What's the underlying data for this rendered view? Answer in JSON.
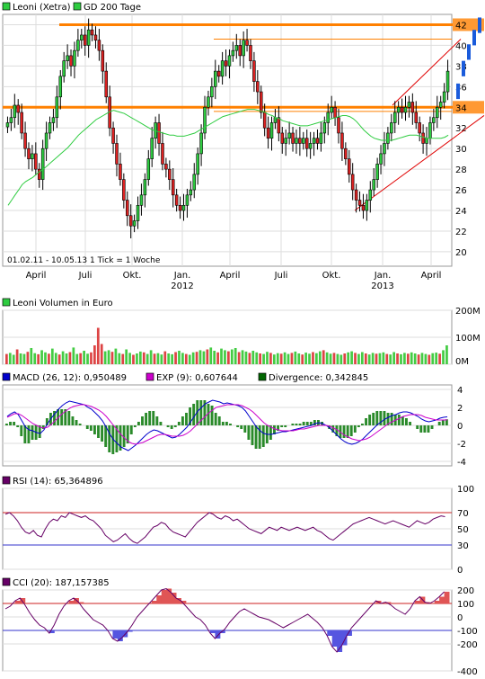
{
  "chart_data": [
    {
      "type": "candlestick",
      "legend": [
        {
          "label": "Leoni (Xetra)",
          "color": "#2ecc40"
        },
        {
          "label": "GD 200 Tage",
          "color": "#2ecc40"
        }
      ],
      "date_range_label": "01.02.11 - 10.05.13",
      "tick_label": "1 Tick = 1 Woche",
      "x_ticks": [
        "April",
        "Juli",
        "Okt.",
        "Jan.",
        "April",
        "Juli",
        "Okt.",
        "Jan.",
        "April"
      ],
      "year_labels": [
        "2012",
        "2013"
      ],
      "y_ticks": [
        20,
        22,
        24,
        26,
        28,
        30,
        32,
        34,
        36,
        38,
        40,
        42
      ],
      "ylim": [
        18.6,
        43.0
      ],
      "highlighted_levels": [
        42,
        34
      ],
      "close": [
        32.5,
        33.0,
        34.2,
        33.5,
        31.5,
        30.0,
        29.0,
        29.5,
        28.0,
        27.0,
        30.0,
        31.5,
        32.5,
        33.0,
        35.0,
        37.0,
        38.5,
        39.0,
        38.0,
        39.5,
        40.5,
        41.0,
        40.0,
        41.5,
        41.0,
        40.5,
        39.5,
        37.5,
        35.0,
        32.0,
        30.5,
        28.5,
        27.0,
        25.0,
        23.5,
        22.5,
        23.0,
        24.5,
        25.5,
        27.0,
        29.0,
        31.0,
        32.5,
        30.5,
        28.5,
        28.0,
        27.0,
        25.5,
        24.5,
        24.0,
        24.5,
        25.5,
        26.0,
        27.5,
        29.5,
        31.5,
        34.0,
        35.0,
        36.0,
        37.5,
        37.0,
        38.5,
        38.0,
        39.0,
        39.5,
        40.0,
        39.0,
        40.5,
        40.0,
        38.5,
        36.5,
        35.5,
        33.5,
        32.0,
        31.0,
        32.5,
        33.0,
        31.5,
        30.5,
        31.0,
        31.5,
        30.5,
        31.0,
        30.5,
        31.0,
        30.0,
        30.5,
        31.0,
        30.5,
        31.5,
        32.5,
        33.5,
        34.0,
        33.0,
        31.5,
        30.0,
        29.0,
        27.5,
        26.0,
        25.0,
        24.5,
        24.0,
        25.0,
        26.0,
        27.0,
        28.5,
        29.5,
        30.5,
        31.5,
        32.5,
        33.5,
        34.0,
        33.5,
        34.0,
        34.5,
        33.5,
        32.5,
        31.5,
        30.5,
        31.0,
        32.5,
        33.0,
        34.0,
        34.5,
        35.5,
        37.5
      ],
      "ma200": [
        24.5,
        25.0,
        25.5,
        26.0,
        26.5,
        26.8,
        27.0,
        27.2,
        27.5,
        27.8,
        28.0,
        28.3,
        28.6,
        28.9,
        29.2,
        29.5,
        29.8,
        30.1,
        30.5,
        30.9,
        31.3,
        31.6,
        31.9,
        32.2,
        32.5,
        32.8,
        33.0,
        33.2,
        33.4,
        33.6,
        33.7,
        33.6,
        33.5,
        33.4,
        33.2,
        33.0,
        32.8,
        32.6,
        32.4,
        32.2,
        32.0,
        31.8,
        31.7,
        31.6,
        31.5,
        31.4,
        31.3,
        31.3,
        31.2,
        31.2,
        31.2,
        31.3,
        31.4,
        31.5,
        31.7,
        31.9,
        32.1,
        32.3,
        32.5,
        32.7,
        32.9,
        33.1,
        33.2,
        33.3,
        33.4,
        33.5,
        33.6,
        33.7,
        33.8,
        33.8,
        33.8,
        33.7,
        33.6,
        33.5,
        33.3,
        33.2,
        33.0,
        32.9,
        32.7,
        32.6,
        32.5,
        32.4,
        32.3,
        32.2,
        32.2,
        32.2,
        32.3,
        32.4,
        32.5,
        32.6,
        32.7,
        32.8,
        32.9,
        33.0,
        33.1,
        33.2,
        33.2,
        33.1,
        32.9,
        32.6,
        32.2,
        31.8,
        31.5,
        31.2,
        31.0,
        30.9,
        30.8,
        30.8,
        30.8,
        30.8,
        30.9,
        31.0,
        31.1,
        31.2,
        31.3,
        31.3,
        31.3,
        31.2,
        31.1,
        31.0,
        31.0,
        31.0,
        31.0,
        31.0,
        31.1,
        31.3
      ]
    },
    {
      "type": "bar",
      "legend": [
        {
          "label": "Leoni Volumen in Euro",
          "color": "#2ecc40"
        }
      ],
      "y_ticks": [
        "0M",
        "100M",
        "200M"
      ],
      "ylim": [
        0,
        200
      ],
      "values": [
        38,
        42,
        35,
        55,
        40,
        38,
        46,
        60,
        41,
        37,
        52,
        44,
        39,
        58,
        42,
        36,
        48,
        40,
        45,
        62,
        38,
        41,
        50,
        39,
        44,
        70,
        135,
        75,
        48,
        52,
        46,
        58,
        41,
        38,
        55,
        42,
        35,
        40,
        47,
        44,
        38,
        52,
        39,
        41,
        36,
        48,
        40,
        37,
        45,
        50,
        42,
        38,
        35,
        44,
        46,
        52,
        48,
        55,
        62,
        50,
        44,
        58,
        52,
        48,
        55,
        60,
        45,
        52,
        47,
        42,
        50,
        44,
        40,
        38,
        46,
        42,
        36,
        41,
        39,
        44,
        38,
        42,
        47,
        40,
        36,
        43,
        39,
        45,
        41,
        48,
        52,
        44,
        39,
        42,
        38,
        35,
        40,
        44,
        48,
        42,
        38,
        45,
        40,
        36,
        42,
        39,
        41,
        44,
        38,
        36,
        45,
        40,
        37,
        42,
        39,
        44,
        40,
        36,
        42,
        38,
        35,
        41,
        43,
        39,
        52,
        70
      ]
    },
    {
      "type": "line",
      "legend": [
        {
          "label": "MACD (26, 12): 0,950489",
          "color": "#0000cc"
        },
        {
          "label": "EXP (9): 0,607644",
          "color": "#cc00cc"
        },
        {
          "label": "Divergence: 0,342845",
          "color": "#006600"
        }
      ],
      "y_ticks": [
        -4,
        -2,
        0,
        2,
        4
      ],
      "ylim": [
        -4.5,
        4.5
      ],
      "macd": [
        1.0,
        1.3,
        1.5,
        1.2,
        0.5,
        -0.2,
        -0.5,
        -0.6,
        -0.8,
        -0.9,
        -0.5,
        0.2,
        0.8,
        1.3,
        1.8,
        2.2,
        2.5,
        2.7,
        2.6,
        2.5,
        2.4,
        2.3,
        2.0,
        1.8,
        1.4,
        1.0,
        0.5,
        -0.2,
        -1.0,
        -1.6,
        -2.0,
        -2.4,
        -2.6,
        -2.8,
        -2.5,
        -2.2,
        -1.8,
        -1.4,
        -1.0,
        -0.7,
        -0.5,
        -0.6,
        -0.8,
        -1.0,
        -1.2,
        -1.4,
        -1.3,
        -1.0,
        -0.6,
        -0.2,
        0.4,
        1.0,
        1.6,
        2.0,
        2.4,
        2.6,
        2.8,
        2.7,
        2.6,
        2.4,
        2.5,
        2.4,
        2.3,
        2.2,
        2.0,
        1.6,
        1.0,
        0.4,
        -0.2,
        -0.6,
        -0.9,
        -1.0,
        -1.0,
        -0.9,
        -0.8,
        -0.7,
        -0.7,
        -0.6,
        -0.5,
        -0.4,
        -0.3,
        -0.2,
        -0.1,
        0.0,
        0.2,
        0.3,
        0.2,
        0.0,
        -0.3,
        -0.7,
        -1.1,
        -1.5,
        -1.8,
        -2.0,
        -2.1,
        -2.0,
        -1.8,
        -1.5,
        -1.1,
        -0.7,
        -0.3,
        0.1,
        0.4,
        0.7,
        0.9,
        1.1,
        1.2,
        1.4,
        1.5,
        1.5,
        1.4,
        1.2,
        1.0,
        0.7,
        0.5,
        0.4,
        0.5,
        0.6,
        0.8,
        0.9,
        0.95
      ],
      "exp": [
        0.9,
        1.1,
        1.3,
        1.3,
        1.1,
        0.8,
        0.5,
        0.2,
        0.0,
        -0.2,
        -0.3,
        -0.2,
        0.1,
        0.5,
        0.9,
        1.3,
        1.6,
        1.9,
        2.1,
        2.2,
        2.3,
        2.3,
        2.2,
        2.1,
        1.9,
        1.7,
        1.4,
        1.0,
        0.5,
        0.0,
        -0.5,
        -1.0,
        -1.4,
        -1.8,
        -2.0,
        -2.1,
        -2.0,
        -1.9,
        -1.7,
        -1.5,
        -1.3,
        -1.1,
        -1.0,
        -1.0,
        -1.1,
        -1.2,
        -1.2,
        -1.2,
        -1.1,
        -0.9,
        -0.6,
        -0.2,
        0.2,
        0.6,
        1.0,
        1.4,
        1.7,
        2.0,
        2.1,
        2.2,
        2.3,
        2.3,
        2.3,
        2.3,
        2.2,
        2.0,
        1.8,
        1.5,
        1.1,
        0.7,
        0.3,
        0.0,
        -0.2,
        -0.4,
        -0.5,
        -0.6,
        -0.6,
        -0.6,
        -0.6,
        -0.5,
        -0.4,
        -0.4,
        -0.3,
        -0.2,
        -0.1,
        0.0,
        0.0,
        0.0,
        -0.1,
        -0.3,
        -0.5,
        -0.8,
        -1.1,
        -1.3,
        -1.5,
        -1.6,
        -1.7,
        -1.6,
        -1.5,
        -1.3,
        -1.0,
        -0.7,
        -0.4,
        -0.1,
        0.2,
        0.4,
        0.6,
        0.8,
        1.0,
        1.1,
        1.2,
        1.2,
        1.2,
        1.1,
        0.9,
        0.8,
        0.7,
        0.6,
        0.6,
        0.6,
        0.61
      ]
    },
    {
      "type": "line",
      "legend": [
        {
          "label": "RSI (14): 65,364896",
          "color": "#660066"
        }
      ],
      "y_ticks": [
        0,
        30,
        50,
        70,
        100
      ],
      "ylim": [
        0,
        100
      ],
      "reference_lines": [
        70,
        30
      ],
      "values": [
        68,
        70,
        66,
        60,
        52,
        46,
        44,
        48,
        42,
        40,
        50,
        58,
        62,
        60,
        66,
        64,
        70,
        68,
        66,
        64,
        66,
        62,
        60,
        55,
        50,
        42,
        38,
        34,
        36,
        40,
        44,
        38,
        34,
        32,
        36,
        40,
        46,
        52,
        54,
        58,
        56,
        50,
        46,
        44,
        42,
        40,
        46,
        52,
        58,
        62,
        66,
        70,
        68,
        64,
        62,
        66,
        64,
        60,
        62,
        58,
        54,
        50,
        48,
        46,
        44,
        48,
        52,
        50,
        48,
        52,
        50,
        48,
        50,
        52,
        50,
        48,
        50,
        52,
        48,
        46,
        42,
        38,
        36,
        40,
        44,
        48,
        52,
        56,
        58,
        60,
        62,
        64,
        62,
        60,
        58,
        56,
        58,
        60,
        58,
        56,
        54,
        52,
        56,
        60,
        58,
        56,
        58,
        62,
        64,
        66,
        65
      ]
    },
    {
      "type": "line",
      "legend": [
        {
          "label": "CCI (20): 187,157385",
          "color": "#660066"
        }
      ],
      "y_ticks": [
        -400,
        -200,
        -100,
        0,
        100,
        200
      ],
      "ylim": [
        -400,
        200
      ],
      "reference_lines": [
        100,
        -100
      ],
      "values": [
        60,
        80,
        120,
        140,
        90,
        30,
        -20,
        -60,
        -80,
        -120,
        -60,
        20,
        80,
        120,
        140,
        110,
        60,
        20,
        -20,
        -40,
        -60,
        -100,
        -160,
        -180,
        -150,
        -110,
        -60,
        0,
        40,
        80,
        120,
        160,
        200,
        210,
        180,
        140,
        120,
        80,
        40,
        0,
        -20,
        -60,
        -120,
        -160,
        -120,
        -90,
        -40,
        0,
        40,
        60,
        40,
        20,
        0,
        -10,
        -20,
        -40,
        -60,
        -80,
        -60,
        -40,
        -20,
        0,
        20,
        -10,
        -40,
        -80,
        -140,
        -220,
        -260,
        -210,
        -140,
        -80,
        -40,
        0,
        40,
        80,
        120,
        100,
        110,
        90,
        60,
        40,
        20,
        60,
        120,
        150,
        110,
        100,
        120,
        150,
        187
      ]
    }
  ]
}
